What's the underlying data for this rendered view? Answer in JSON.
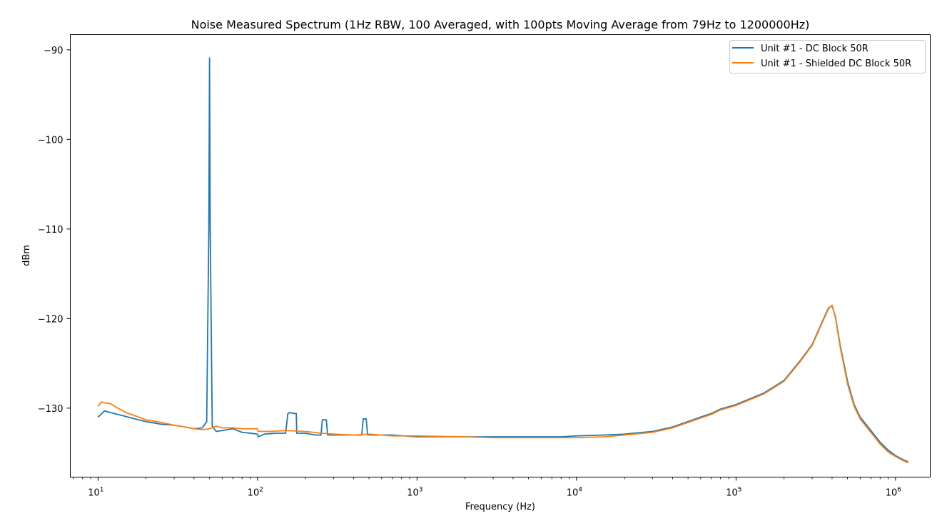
{
  "chart_data": {
    "type": "line",
    "title": "Noise Measured Spectrum (1Hz RBW, 100 Averaged, with 100pts Moving Average from 79Hz to 1200000Hz)",
    "xlabel": "Frequency (Hz)",
    "ylabel": "dBm",
    "x_scale": "log",
    "xlim": [
      6.7,
      1650000
    ],
    "ylim": [
      -137.7,
      -88.3
    ],
    "x_ticks": [
      {
        "value": 10,
        "base": "10",
        "exp": "1"
      },
      {
        "value": 100,
        "base": "10",
        "exp": "2"
      },
      {
        "value": 1000,
        "base": "10",
        "exp": "3"
      },
      {
        "value": 10000,
        "base": "10",
        "exp": "4"
      },
      {
        "value": 100000,
        "base": "10",
        "exp": "5"
      },
      {
        "value": 1000000,
        "base": "10",
        "exp": "6"
      }
    ],
    "y_ticks": [
      {
        "value": -90,
        "label": "−90"
      },
      {
        "value": -100,
        "label": "−100"
      },
      {
        "value": -110,
        "label": "−110"
      },
      {
        "value": -120,
        "label": "−120"
      },
      {
        "value": -130,
        "label": "−130"
      }
    ],
    "grid": false,
    "legend_position": "top-right",
    "series": [
      {
        "name": "Unit #1 - DC Block 50R",
        "color": "#1f77b4",
        "x": [
          10,
          11,
          12,
          14,
          17,
          20,
          25,
          30,
          35,
          40,
          45,
          48,
          49.5,
          50,
          50.5,
          52,
          55,
          60,
          70,
          80,
          90,
          100,
          101,
          110,
          130,
          150,
          155,
          160,
          170,
          175,
          176,
          200,
          230,
          250,
          255,
          270,
          275,
          280,
          350,
          450,
          460,
          480,
          490,
          600,
          700,
          1000,
          2000,
          3000,
          5000,
          8000,
          10000,
          15000,
          20000,
          30000,
          40000,
          50000,
          60000,
          70000,
          80000,
          100000,
          150000,
          200000,
          250000,
          300000,
          350000,
          380000,
          400000,
          420000,
          450000,
          500000,
          550000,
          600000,
          700000,
          800000,
          900000,
          1000000,
          1100000,
          1200000
        ],
        "y": [
          -131.0,
          -130.3,
          -130.5,
          -130.8,
          -131.2,
          -131.5,
          -131.8,
          -131.9,
          -132.1,
          -132.3,
          -132.2,
          -131.5,
          -110.0,
          -90.9,
          -110.0,
          -132.0,
          -132.6,
          -132.5,
          -132.3,
          -132.7,
          -132.8,
          -132.9,
          -133.2,
          -132.9,
          -132.8,
          -132.8,
          -130.6,
          -130.5,
          -130.6,
          -130.6,
          -132.8,
          -132.8,
          -133.0,
          -133.0,
          -131.3,
          -131.3,
          -133.0,
          -133.0,
          -133.0,
          -133.0,
          -131.2,
          -131.2,
          -133.0,
          -133.0,
          -133.0,
          -133.2,
          -133.2,
          -133.2,
          -133.2,
          -133.2,
          -133.1,
          -133.0,
          -132.9,
          -132.6,
          -132.1,
          -131.5,
          -131.0,
          -130.6,
          -130.1,
          -129.6,
          -128.3,
          -126.9,
          -124.8,
          -122.9,
          -120.2,
          -118.8,
          -118.6,
          -119.8,
          -123.0,
          -127.0,
          -129.6,
          -131.0,
          -132.5,
          -133.8,
          -134.7,
          -135.3,
          -135.7,
          -136.0
        ]
      },
      {
        "name": "Unit #1 - Shielded DC Block 50R",
        "color": "#ff7f0e",
        "x": [
          10,
          10.5,
          11,
          12,
          13,
          15,
          18,
          20,
          25,
          30,
          35,
          40,
          45,
          50,
          55,
          60,
          70,
          80,
          90,
          100,
          101,
          120,
          150,
          200,
          250,
          300,
          400,
          500,
          700,
          1000,
          2000,
          3000,
          5000,
          8000,
          10000,
          15000,
          20000,
          30000,
          40000,
          50000,
          60000,
          70000,
          80000,
          100000,
          150000,
          200000,
          250000,
          300000,
          350000,
          380000,
          400000,
          420000,
          450000,
          500000,
          550000,
          600000,
          700000,
          800000,
          900000,
          1000000,
          1100000,
          1200000
        ],
        "y": [
          -129.8,
          -129.3,
          -129.4,
          -129.5,
          -129.9,
          -130.5,
          -131.0,
          -131.3,
          -131.6,
          -131.9,
          -132.1,
          -132.3,
          -132.4,
          -132.3,
          -132.0,
          -132.2,
          -132.2,
          -132.3,
          -132.3,
          -132.3,
          -132.6,
          -132.6,
          -132.5,
          -132.6,
          -132.8,
          -132.9,
          -133.0,
          -132.9,
          -133.1,
          -133.1,
          -133.2,
          -133.3,
          -133.3,
          -133.3,
          -133.3,
          -133.2,
          -133.0,
          -132.7,
          -132.2,
          -131.6,
          -131.1,
          -130.7,
          -130.2,
          -129.7,
          -128.4,
          -127.0,
          -124.9,
          -123.0,
          -120.3,
          -118.9,
          -118.5,
          -119.9,
          -123.2,
          -127.3,
          -129.8,
          -131.2,
          -132.7,
          -134.0,
          -134.9,
          -135.4,
          -135.8,
          -136.1
        ]
      }
    ]
  }
}
